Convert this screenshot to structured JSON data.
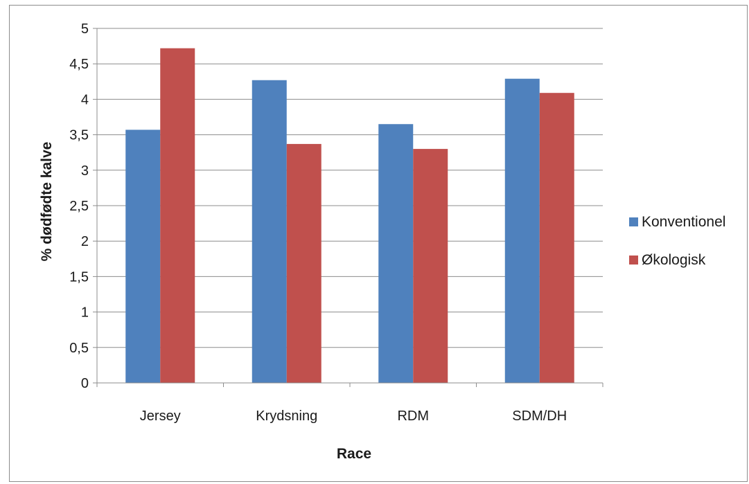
{
  "chart_data": {
    "type": "bar",
    "categories": [
      "Jersey",
      "Krydsning",
      "RDM",
      "SDM/DH"
    ],
    "series": [
      {
        "name": "Konventionel",
        "color": "#4f81bd",
        "values": [
          3.57,
          4.27,
          3.65,
          4.29
        ]
      },
      {
        "name": "Økologisk",
        "color": "#c0504d",
        "values": [
          4.72,
          3.37,
          3.3,
          4.09
        ]
      }
    ],
    "xlabel": "Race",
    "ylabel": "% dødfødte kalve",
    "ylim": [
      0,
      5
    ],
    "yticks": [
      "0",
      "0,5",
      "1",
      "1,5",
      "2",
      "2,5",
      "3",
      "3,5",
      "4",
      "4,5",
      "5"
    ],
    "ytick_values": [
      0,
      0.5,
      1,
      1.5,
      2,
      2.5,
      3,
      3.5,
      4,
      4.5,
      5
    ],
    "grid": "horizontal",
    "legend_position": "right",
    "gridline_color": "#8c8c8c"
  }
}
